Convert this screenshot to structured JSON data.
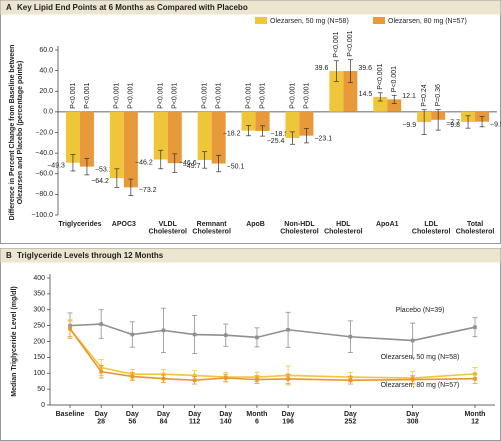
{
  "chart_data": [
    {
      "type": "bar",
      "panel": "A",
      "title": "Key Lipid End Points at 6 Months as Compared with Placebo",
      "ylabel": [
        "Difference in Percent Change from Baseline between",
        "Olezarsen and Placebo (percentage points)"
      ],
      "categories": [
        "Triglycerides",
        "APOC3",
        "VLDL Cholesterol",
        "Remnant Cholesterol",
        "ApoB",
        "Non-HDL Cholesterol",
        "HDL Cholesterol",
        "ApoA1",
        "LDL Cholesterol",
        "Total Cholesterol"
      ],
      "ylim": [
        -100,
        60
      ],
      "yticks": [
        {
          "value": -100,
          "label": "−100.0"
        },
        {
          "value": -80,
          "label": "−80.0"
        },
        {
          "value": -60,
          "label": "−60.0"
        },
        {
          "value": -40,
          "label": "−40.0"
        },
        {
          "value": -20,
          "label": "−20.0"
        },
        {
          "value": 0,
          "label": "0.0"
        },
        {
          "value": 20,
          "label": "20.0"
        },
        {
          "value": 40,
          "label": "40.0"
        },
        {
          "value": 60,
          "label": "60.0"
        }
      ],
      "legend": "top-right",
      "series": [
        {
          "name": "Olezarsen, 50 mg (N=58)",
          "color": "#efc53a",
          "values": [
            -49.3,
            -64.2,
            -46.2,
            -46.6,
            -18.2,
            -25.4,
            39.6,
            14.5,
            -9.9,
            -9.8
          ],
          "value_labels": [
            "−49.3",
            "−64.2",
            "−46.2",
            "−46.6",
            "−18.2",
            "−25.4",
            "39.6",
            "14.5",
            "−9.9",
            "−9.8"
          ],
          "errors": [
            8,
            9,
            9,
            8,
            5,
            6,
            10,
            4,
            12,
            6
          ],
          "p_values": [
            "P<0.001",
            "P<0.001",
            "P<0.001",
            "P<0.001",
            "P<0.001",
            "P<0.001",
            "P<0.001",
            "P<0.001",
            "P=0.24",
            null
          ]
        },
        {
          "name": "Olezarsen, 80 mg (N=57)",
          "color": "#e89a3a",
          "values": [
            -53.1,
            -73.2,
            -49.7,
            -50.1,
            -18.5,
            -23.1,
            39.6,
            12.1,
            -7.7,
            -9.5
          ],
          "value_labels": [
            "−53.1",
            "−73.2",
            "−49.7",
            "−50.1",
            "−18.5",
            "−23.1",
            "39.6",
            "12.1",
            "−7.7",
            "−9.5"
          ],
          "errors": [
            8,
            8,
            9,
            8,
            5,
            7,
            11,
            4,
            10,
            5
          ],
          "p_values": [
            "P<0.001",
            "P<0.001",
            "P<0.001",
            "P<0.001",
            "P<0.001",
            "P<0.001",
            "P<0.001",
            "P<0.001",
            "P=0.36",
            null
          ]
        }
      ]
    },
    {
      "type": "line",
      "panel": "B",
      "title": "Triglyceride Levels through 12 Months",
      "ylabel": "Median Triglyceride Level (mg/dl)",
      "x": [
        0,
        28,
        56,
        84,
        112,
        140,
        168,
        196,
        252,
        308,
        364
      ],
      "xlim": [
        -18,
        382
      ],
      "xticks": [
        {
          "value": 0,
          "label": "Baseline"
        },
        {
          "value": 28,
          "label": "Day 28"
        },
        {
          "value": 56,
          "label": "Day 56"
        },
        {
          "value": 84,
          "label": "Day 84"
        },
        {
          "value": 112,
          "label": "Day 112"
        },
        {
          "value": 140,
          "label": "Day 140"
        },
        {
          "value": 168,
          "label": "Month 6"
        },
        {
          "value": 196,
          "label": "Day 196"
        },
        {
          "value": 252,
          "label": "Day 252"
        },
        {
          "value": 308,
          "label": "Day 308"
        },
        {
          "value": 364,
          "label": "Month 12"
        }
      ],
      "ylim": [
        0,
        400
      ],
      "yticks": [
        0,
        50,
        100,
        150,
        200,
        250,
        300,
        350,
        400
      ],
      "series": [
        {
          "name": "Placebo (N=39)",
          "color": "#8f8f8f",
          "values": [
            250,
            255,
            222,
            235,
            222,
            220,
            213,
            237,
            215,
            203,
            245
          ],
          "errors": [
            40,
            45,
            40,
            70,
            60,
            35,
            30,
            55,
            50,
            55,
            30
          ]
        },
        {
          "name": "Olezarsen, 50 mg (N=58)",
          "color": "#f2c53a",
          "values": [
            240,
            118,
            97,
            97,
            93,
            88,
            88,
            93,
            88,
            85,
            98
          ],
          "errors": [
            30,
            25,
            15,
            15,
            15,
            15,
            15,
            30,
            15,
            20,
            20
          ]
        },
        {
          "name": "Olezarsen, 80 mg (N=57)",
          "color": "#e8962e",
          "values": [
            240,
            105,
            90,
            83,
            78,
            85,
            80,
            82,
            78,
            80,
            83
          ],
          "errors": [
            25,
            20,
            12,
            12,
            12,
            12,
            12,
            15,
            12,
            12,
            15
          ]
        }
      ]
    }
  ]
}
